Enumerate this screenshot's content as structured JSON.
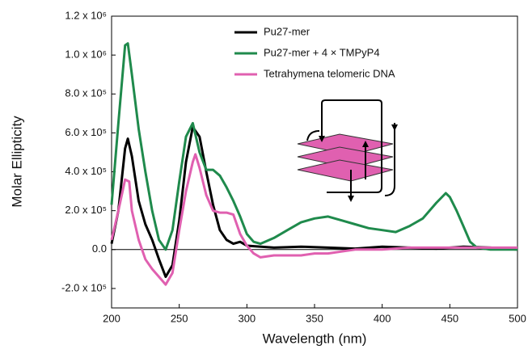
{
  "chart_data": {
    "type": "line",
    "x_label": "Wavelength (nm)",
    "y_label": "Molar Ellipticity",
    "xlim": [
      200,
      500
    ],
    "xticks": [
      200,
      250,
      300,
      350,
      400,
      450,
      500
    ],
    "ylim": [
      -300000,
      1200000
    ],
    "yticks": [
      {
        "value": -200000,
        "label": "-2.0 x 10⁵"
      },
      {
        "value": 0,
        "label": "0.0"
      },
      {
        "value": 200000,
        "label": "2.0 x 10⁵"
      },
      {
        "value": 400000,
        "label": "4.0 x 10⁵"
      },
      {
        "value": 600000,
        "label": "6.0 x 10⁵"
      },
      {
        "value": 800000,
        "label": "8.0 x 10⁵"
      },
      {
        "value": 1000000,
        "label": "1.0 x 10⁶"
      },
      {
        "value": 1200000,
        "label": "1.2 x 10⁶"
      }
    ],
    "series": [
      {
        "name": "Pu27-mer",
        "color": "#000000",
        "x": [
          200,
          205,
          210,
          212,
          215,
          220,
          225,
          230,
          235,
          240,
          245,
          250,
          255,
          260,
          265,
          270,
          275,
          280,
          285,
          290,
          295,
          300,
          320,
          340,
          360,
          380,
          400,
          420,
          440,
          460,
          480,
          500
        ],
        "values": [
          30000,
          200000,
          520000,
          570000,
          480000,
          250000,
          130000,
          50000,
          -50000,
          -140000,
          -80000,
          150000,
          450000,
          630000,
          580000,
          400000,
          230000,
          100000,
          50000,
          30000,
          40000,
          20000,
          10000,
          15000,
          10000,
          5000,
          15000,
          10000,
          5000,
          15000,
          10000,
          0
        ]
      },
      {
        "name": "Pu27-mer + 4 × TMPyP4",
        "color": "#1f8a4c",
        "x": [
          200,
          205,
          210,
          212,
          215,
          220,
          225,
          230,
          235,
          240,
          245,
          250,
          255,
          260,
          265,
          270,
          275,
          280,
          285,
          290,
          295,
          300,
          305,
          310,
          320,
          330,
          340,
          350,
          360,
          370,
          380,
          390,
          400,
          410,
          420,
          430,
          440,
          447,
          450,
          455,
          460,
          465,
          470,
          480,
          490,
          500
        ],
        "values": [
          230000,
          650000,
          1050000,
          1060000,
          900000,
          620000,
          400000,
          200000,
          50000,
          0,
          100000,
          350000,
          580000,
          650000,
          500000,
          410000,
          410000,
          380000,
          320000,
          250000,
          170000,
          80000,
          40000,
          30000,
          60000,
          100000,
          140000,
          160000,
          170000,
          150000,
          130000,
          110000,
          100000,
          90000,
          120000,
          160000,
          240000,
          290000,
          270000,
          200000,
          120000,
          40000,
          10000,
          0,
          0,
          0
        ]
      },
      {
        "name": "Tetrahymena telomeric DNA",
        "color": "#e060b0",
        "x": [
          200,
          205,
          210,
          213,
          215,
          220,
          225,
          230,
          235,
          240,
          245,
          250,
          255,
          260,
          262,
          265,
          270,
          275,
          280,
          285,
          290,
          295,
          300,
          305,
          310,
          320,
          330,
          340,
          350,
          360,
          370,
          380,
          400,
          420,
          440,
          460,
          480,
          500
        ],
        "values": [
          50000,
          200000,
          360000,
          350000,
          200000,
          50000,
          -50000,
          -100000,
          -140000,
          -180000,
          -120000,
          100000,
          300000,
          450000,
          490000,
          420000,
          280000,
          200000,
          190000,
          190000,
          180000,
          80000,
          20000,
          -20000,
          -40000,
          -30000,
          -30000,
          -30000,
          -20000,
          -20000,
          -10000,
          0,
          0,
          10000,
          10000,
          10000,
          10000,
          10000
        ]
      }
    ]
  }
}
